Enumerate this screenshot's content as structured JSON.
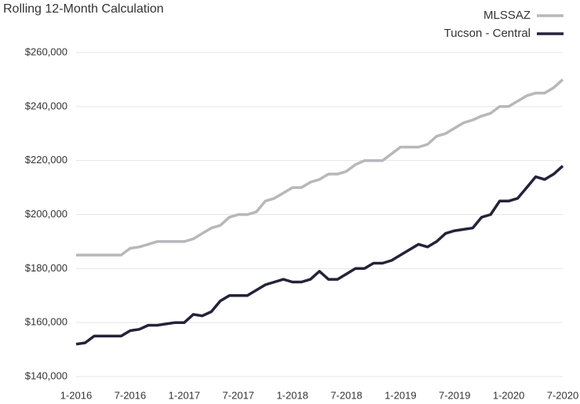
{
  "chart_data": {
    "type": "line",
    "title": "Rolling 12-Month Calculation",
    "categories": [
      "1-2016",
      null,
      null,
      null,
      null,
      null,
      "7-2016",
      null,
      null,
      null,
      null,
      null,
      "1-2017",
      null,
      null,
      null,
      null,
      null,
      "7-2017",
      null,
      null,
      null,
      null,
      null,
      "1-2018",
      null,
      null,
      null,
      null,
      null,
      "7-2018",
      null,
      null,
      null,
      null,
      null,
      "1-2019",
      null,
      null,
      null,
      null,
      null,
      "7-2019",
      null,
      null,
      null,
      null,
      null,
      "1-2020",
      null,
      null,
      null,
      null,
      null,
      "7-2020"
    ],
    "series": [
      {
        "name": "MLSSAZ",
        "color": "#b7b7bc",
        "values": [
          185000,
          185000,
          185000,
          185000,
          185000,
          185000,
          187500,
          188000,
          189000,
          190000,
          190000,
          190000,
          190000,
          191000,
          193000,
          195000,
          196000,
          199000,
          200000,
          200000,
          201000,
          205000,
          206000,
          208000,
          210000,
          210000,
          212000,
          213000,
          215000,
          215000,
          216000,
          218500,
          220000,
          220000,
          220000,
          222500,
          225000,
          225000,
          225000,
          226000,
          229000,
          230000,
          232000,
          234000,
          235000,
          236500,
          237500,
          240000,
          240000,
          242000,
          244000,
          245000,
          245000,
          247000,
          250000
        ]
      },
      {
        "name": "Tucson - Central",
        "color": "#23233a",
        "values": [
          152000,
          152500,
          155000,
          155000,
          155000,
          155000,
          157000,
          157500,
          159000,
          159000,
          159500,
          160000,
          160000,
          163000,
          162500,
          164000,
          168000,
          170000,
          170000,
          170000,
          172000,
          174000,
          175000,
          176000,
          175000,
          175000,
          176000,
          179000,
          176000,
          176000,
          178000,
          180000,
          180000,
          182000,
          182000,
          183000,
          185000,
          187000,
          189000,
          188000,
          190000,
          193000,
          194000,
          194500,
          195000,
          199000,
          200000,
          205000,
          205000,
          206000,
          210000,
          214000,
          213000,
          215000,
          218000
        ]
      }
    ],
    "ylim": [
      140000,
      260000
    ],
    "yticks": [
      {
        "value": 140000,
        "label": "$140,000"
      },
      {
        "value": 160000,
        "label": "$160,000"
      },
      {
        "value": 180000,
        "label": "$180,000"
      },
      {
        "value": 200000,
        "label": "$200,000"
      },
      {
        "value": 220000,
        "label": "$220,000"
      },
      {
        "value": 240000,
        "label": "$240,000"
      },
      {
        "value": 260000,
        "label": "$260,000"
      }
    ],
    "grid": true,
    "legend": "top-right"
  }
}
